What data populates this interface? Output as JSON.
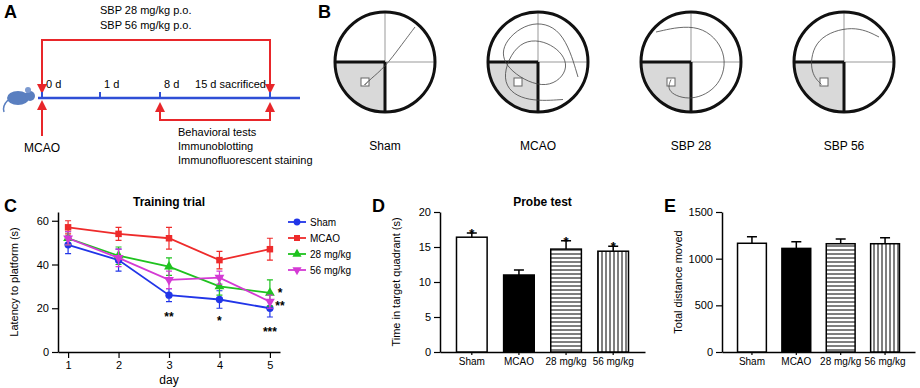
{
  "timeline": {
    "panel": "A",
    "regimens": [
      "SBP 28 mg/kg p.o.",
      "SBP 56 mg/kg p.o."
    ],
    "timepoints": [
      "0 d",
      "1 d",
      "8 d",
      "15 d sacrificed"
    ],
    "model": "MCAO",
    "assays": [
      "Behavioral tests",
      "Immunoblotting",
      "Immunofluorescent staining"
    ]
  },
  "swim_paths": {
    "panel": "B",
    "groups": [
      "Sham",
      "MCAO",
      "SBP 28",
      "SBP 56"
    ]
  },
  "chart_data": [
    {
      "panel": "C",
      "type": "line",
      "title": "Training trial",
      "x_label": "day",
      "y_label": "Latency to platform (s)",
      "x": [
        1,
        2,
        3,
        4,
        5
      ],
      "xlim": [
        0.8,
        5.2
      ],
      "xticks": [
        1,
        2,
        3,
        4,
        5
      ],
      "ylim": [
        0,
        64
      ],
      "yticks": [
        0,
        20,
        40,
        60
      ],
      "legend": "upper right",
      "series": [
        {
          "name": "Sham",
          "color": "#2135e8",
          "marker": "circle",
          "values": [
            49,
            42,
            26,
            24,
            20
          ],
          "errors": [
            4,
            5,
            3,
            4,
            4
          ]
        },
        {
          "name": "MCAO",
          "color": "#ee2b2b",
          "marker": "square",
          "values": [
            57,
            54,
            52,
            42,
            47
          ],
          "errors": [
            3,
            3,
            5,
            4,
            5
          ]
        },
        {
          "name": "28 mg/kg",
          "color": "#1fc21f",
          "marker": "triangle",
          "values": [
            52,
            44,
            39,
            30,
            27
          ],
          "errors": [
            3,
            4,
            4,
            4,
            6
          ]
        },
        {
          "name": "56 mg/kg",
          "color": "#d43ad4",
          "marker": "triangle-down",
          "values": [
            52,
            43,
            33,
            34,
            23
          ],
          "errors": [
            3,
            4,
            4,
            3,
            3
          ]
        }
      ],
      "annotations": [
        {
          "text": "**",
          "x": 3,
          "y": 18
        },
        {
          "text": "*",
          "x": 4,
          "y": 16
        },
        {
          "text": "***",
          "x": 5,
          "y": 11
        },
        {
          "text": "*",
          "x": 5.2,
          "y": 29
        },
        {
          "text": "**",
          "x": 5.2,
          "y": 23
        }
      ]
    },
    {
      "panel": "D",
      "type": "bar",
      "title": "Probe test",
      "y_label": "Time in target quadrant (s)",
      "categories": [
        "Sham",
        "MCAO",
        "28 mg/kg",
        "56 mg/kg"
      ],
      "values": [
        16.4,
        11,
        14.7,
        14.4
      ],
      "errors": [
        0.6,
        0.7,
        1.2,
        0.7
      ],
      "significance": [
        "*",
        null,
        "*",
        "*"
      ],
      "colors": [
        "#ffffff",
        "#000000",
        "#ffffff",
        "#ffffff"
      ],
      "ylim": [
        0,
        20
      ],
      "yticks": [
        0,
        5,
        10,
        15,
        20
      ]
    },
    {
      "panel": "E",
      "type": "bar",
      "y_label": "Total distance moved",
      "categories": [
        "Sham",
        "MCAO",
        "28 mg/kg",
        "56 mg/kg"
      ],
      "values": [
        1165,
        1110,
        1160,
        1160
      ],
      "errors": [
        70,
        70,
        50,
        65
      ],
      "colors": [
        "#ffffff",
        "#000000",
        "#ffffff",
        "#ffffff"
      ],
      "ylim": [
        0,
        1500
      ],
      "yticks": [
        0,
        500,
        1000,
        1500
      ]
    }
  ]
}
